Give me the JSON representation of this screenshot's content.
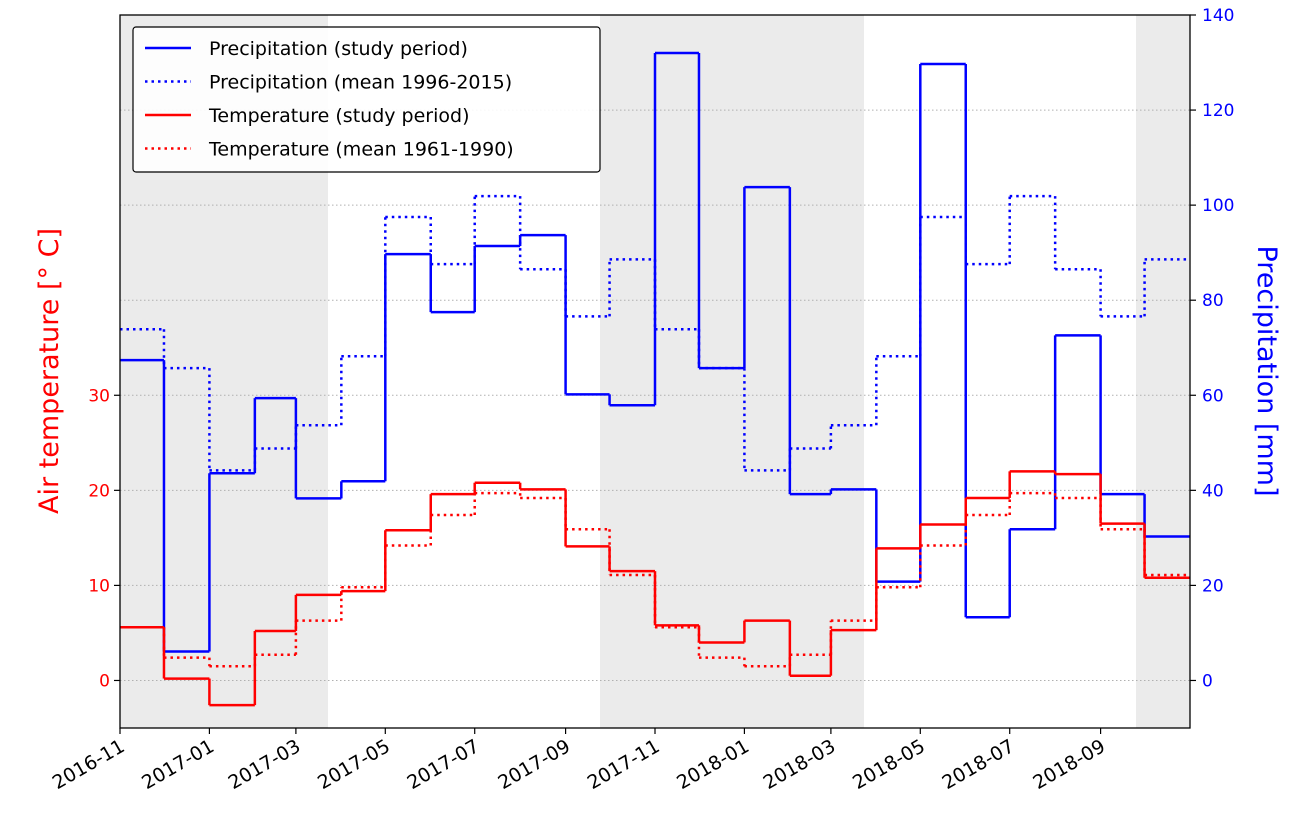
{
  "chart_data": {
    "type": "step",
    "x": [
      "2016-11",
      "2016-12",
      "2017-01",
      "2017-02",
      "2017-03",
      "2017-04",
      "2017-05",
      "2017-06",
      "2017-07",
      "2017-08",
      "2017-09",
      "2017-10",
      "2017-11",
      "2017-12",
      "2018-01",
      "2018-02",
      "2018-03",
      "2018-04",
      "2018-05",
      "2018-06",
      "2018-07",
      "2018-08",
      "2018-09",
      "2018-10"
    ],
    "series": [
      {
        "name": "Precipitation (study period)",
        "color": "#0000ff",
        "linestyle": "solid",
        "axis": "y2",
        "values": [
          67.4,
          6.1,
          43.6,
          59.4,
          38.3,
          41.9,
          89.7,
          77.5,
          91.4,
          93.7,
          60.2,
          57.9,
          132.0,
          65.7,
          103.8,
          39.2,
          40.2,
          20.8,
          129.7,
          13.3,
          31.8,
          72.6,
          39.2,
          30.3
        ]
      },
      {
        "name": "Precipitation (mean 1996-2015)",
        "color": "#0000ff",
        "linestyle": "dotted",
        "axis": "y2",
        "values": [
          73.9,
          65.7,
          44.2,
          48.8,
          53.7,
          68.2,
          97.5,
          87.6,
          101.9,
          86.5,
          76.6,
          88.6,
          73.9,
          65.7,
          44.2,
          48.8,
          53.7,
          68.2,
          97.5,
          87.6,
          101.9,
          86.5,
          76.6,
          88.6
        ]
      },
      {
        "name": "Temperature (study period)",
        "color": "#ff0000",
        "linestyle": "solid",
        "axis": "y",
        "values": [
          5.6,
          0.2,
          -2.6,
          5.2,
          9.0,
          9.4,
          15.8,
          19.6,
          20.8,
          20.1,
          14.1,
          11.5,
          5.8,
          4.0,
          6.3,
          0.5,
          5.3,
          13.9,
          16.4,
          19.2,
          22.0,
          21.7,
          16.5,
          10.8
        ]
      },
      {
        "name": "Temperature (mean 1961-1990)",
        "color": "#ff0000",
        "linestyle": "dotted",
        "axis": "y",
        "values": [
          5.6,
          2.4,
          1.5,
          2.7,
          6.3,
          9.8,
          14.2,
          17.4,
          19.7,
          19.2,
          15.9,
          11.1,
          5.6,
          2.4,
          1.5,
          2.7,
          6.3,
          9.8,
          14.2,
          17.4,
          19.7,
          19.2,
          15.9,
          11.1
        ]
      }
    ],
    "xlim": [
      "2016-11",
      "2018-11"
    ],
    "xticks": [
      "2016-11",
      "2017-01",
      "2017-03",
      "2017-05",
      "2017-07",
      "2017-09",
      "2017-11",
      "2018-01",
      "2018-03",
      "2018-05",
      "2018-07",
      "2018-09"
    ],
    "ylim": [
      -5,
      70
    ],
    "yticks": [
      0,
      10,
      20,
      30
    ],
    "y2lim": [
      -10,
      140
    ],
    "y2ticks": [
      0,
      20,
      40,
      60,
      80,
      100,
      120,
      140
    ],
    "ylabel": "Air temperature [° C]",
    "y2label": "Precipitation [mm]",
    "ylabel_color": "#ff0000",
    "y2label_color": "#0000ff",
    "grid": "y2",
    "legend": "upper left"
  }
}
